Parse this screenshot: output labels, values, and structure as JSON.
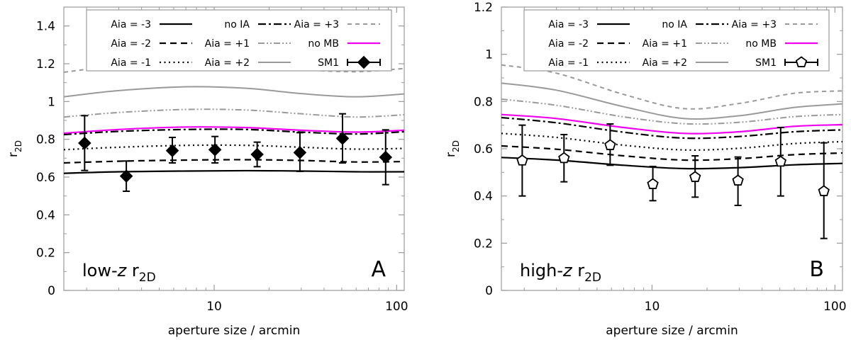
{
  "chart_data": [
    {
      "type": "line",
      "id": "A",
      "panel_letter": "A",
      "label": {
        "prefix": "low-",
        "z": "z",
        "r": "r",
        "sub": "2D"
      },
      "ylabel": {
        "r": "r",
        "sub": "2D"
      },
      "xlabel": "aperture size / arcmin",
      "xscale": "log",
      "xlim": [
        1.5,
        110
      ],
      "ylim": [
        0,
        1.5
      ],
      "yticks": [
        0,
        0.2,
        0.4,
        0.6,
        0.8,
        1,
        1.2,
        1.4
      ],
      "ytick_labels": [
        "0",
        "0.2",
        "0.4",
        "0.6",
        "0.8",
        "1",
        "1.2",
        "1.4"
      ],
      "xticks": [
        10,
        100
      ],
      "xtick_labels": [
        "10",
        "100"
      ],
      "series": [
        {
          "name": "Aia = -3",
          "style": "solid",
          "color": "#000000",
          "x": [
            1.5,
            3,
            7,
            15,
            30,
            60,
            110
          ],
          "y": [
            0.62,
            0.628,
            0.632,
            0.634,
            0.632,
            0.628,
            0.628
          ]
        },
        {
          "name": "Aia = -2",
          "style": "dashed",
          "color": "#000000",
          "x": [
            1.5,
            3,
            7,
            15,
            30,
            60,
            110
          ],
          "y": [
            0.675,
            0.684,
            0.69,
            0.692,
            0.688,
            0.68,
            0.682
          ]
        },
        {
          "name": "Aia = -1",
          "style": "dotted",
          "color": "#000000",
          "x": [
            1.5,
            3,
            7,
            15,
            30,
            60,
            110
          ],
          "y": [
            0.745,
            0.758,
            0.768,
            0.768,
            0.758,
            0.748,
            0.752
          ]
        },
        {
          "name": "no IA",
          "style": "dashdot",
          "color": "#000000",
          "x": [
            1.5,
            3,
            7,
            15,
            30,
            60,
            110
          ],
          "y": [
            0.825,
            0.842,
            0.852,
            0.852,
            0.838,
            0.828,
            0.84
          ]
        },
        {
          "name": "Aia = +1",
          "style": "dashdotdot",
          "color": "#9a9a9a",
          "x": [
            1.5,
            3,
            7,
            15,
            30,
            60,
            110
          ],
          "y": [
            0.918,
            0.942,
            0.958,
            0.955,
            0.935,
            0.918,
            0.93
          ]
        },
        {
          "name": "Aia = +2",
          "style": "solid",
          "color": "#9a9a9a",
          "x": [
            1.5,
            3,
            7,
            15,
            30,
            60,
            110
          ],
          "y": [
            1.025,
            1.058,
            1.078,
            1.07,
            1.042,
            1.025,
            1.04
          ]
        },
        {
          "name": "Aia = +3",
          "style": "shortdash",
          "color": "#9a9a9a",
          "x": [
            1.5,
            3,
            7,
            15,
            30,
            60,
            110
          ],
          "y": [
            1.155,
            1.19,
            1.21,
            1.2,
            1.17,
            1.158,
            1.175
          ]
        },
        {
          "name": "no MB",
          "style": "solid",
          "color": "#ee00ee",
          "x": [
            1.5,
            3,
            7,
            15,
            30,
            60,
            110
          ],
          "y": [
            0.832,
            0.852,
            0.865,
            0.862,
            0.848,
            0.838,
            0.848
          ]
        }
      ],
      "points": {
        "name": "SM1",
        "marker": "diamond",
        "x": [
          1.95,
          3.3,
          5.9,
          10.1,
          17.2,
          29.5,
          50.5,
          87
        ],
        "y": [
          0.78,
          0.605,
          0.74,
          0.745,
          0.72,
          0.73,
          0.805,
          0.705
        ],
        "err_low": [
          0.635,
          0.525,
          0.675,
          0.675,
          0.655,
          0.63,
          0.675,
          0.56
        ],
        "err_high": [
          0.925,
          0.685,
          0.81,
          0.815,
          0.785,
          0.835,
          0.935,
          0.85
        ]
      },
      "legend": {
        "columns": [
          [
            "Aia = -3",
            "Aia = -2",
            "Aia = -1"
          ],
          [
            "no IA",
            "Aia = +1",
            "Aia = +2"
          ],
          [
            "Aia = +3",
            "no MB",
            "SM1"
          ]
        ]
      }
    },
    {
      "type": "line",
      "id": "B",
      "panel_letter": "B",
      "label": {
        "prefix": "high-",
        "z": "z",
        "r": "r",
        "sub": "2D"
      },
      "ylabel": {
        "r": "r",
        "sub": "2D"
      },
      "xlabel": "aperture size / arcmin",
      "xscale": "log",
      "xlim": [
        1.5,
        110
      ],
      "ylim": [
        0,
        1.2
      ],
      "yticks": [
        0,
        0.2,
        0.4,
        0.6,
        0.8,
        1,
        1.2
      ],
      "ytick_labels": [
        "0",
        "0.2",
        "0.4",
        "0.6",
        "0.8",
        "1",
        "1.2"
      ],
      "xticks": [
        10,
        100
      ],
      "xtick_labels": [
        "10",
        "100"
      ],
      "series": [
        {
          "name": "Aia = -3",
          "style": "solid",
          "color": "#000000",
          "x": [
            1.5,
            3,
            7,
            15,
            30,
            60,
            110
          ],
          "y": [
            0.563,
            0.552,
            0.53,
            0.516,
            0.52,
            0.532,
            0.538
          ]
        },
        {
          "name": "Aia = -2",
          "style": "dashed",
          "color": "#000000",
          "x": [
            1.5,
            3,
            7,
            15,
            30,
            60,
            110
          ],
          "y": [
            0.612,
            0.598,
            0.57,
            0.552,
            0.558,
            0.575,
            0.582
          ]
        },
        {
          "name": "Aia = -1",
          "style": "dotted",
          "color": "#000000",
          "x": [
            1.5,
            3,
            7,
            15,
            30,
            60,
            110
          ],
          "y": [
            0.665,
            0.648,
            0.615,
            0.595,
            0.602,
            0.622,
            0.63
          ]
        },
        {
          "name": "no IA",
          "style": "dashdot",
          "color": "#000000",
          "x": [
            1.5,
            3,
            7,
            15,
            30,
            60,
            110
          ],
          "y": [
            0.732,
            0.71,
            0.67,
            0.645,
            0.652,
            0.672,
            0.68
          ]
        },
        {
          "name": "Aia = +1",
          "style": "dashdotdot",
          "color": "#9a9a9a",
          "x": [
            1.5,
            3,
            7,
            15,
            30,
            60,
            110
          ],
          "y": [
            0.81,
            0.784,
            0.735,
            0.706,
            0.712,
            0.736,
            0.745
          ]
        },
        {
          "name": "Aia = +2",
          "style": "solid",
          "color": "#9a9a9a",
          "x": [
            1.5,
            3,
            7,
            15,
            30,
            60,
            110
          ],
          "y": [
            0.878,
            0.848,
            0.778,
            0.728,
            0.74,
            0.775,
            0.79
          ]
        },
        {
          "name": "Aia = +3",
          "style": "shortdash",
          "color": "#9a9a9a",
          "x": [
            1.5,
            3,
            7,
            15,
            30,
            60,
            110
          ],
          "y": [
            0.955,
            0.92,
            0.83,
            0.77,
            0.792,
            0.835,
            0.845
          ]
        },
        {
          "name": "no MB",
          "style": "solid",
          "color": "#ee00ee",
          "x": [
            1.5,
            3,
            7,
            15,
            30,
            60,
            110
          ],
          "y": [
            0.745,
            0.728,
            0.69,
            0.665,
            0.672,
            0.695,
            0.702
          ]
        }
      ],
      "points": {
        "name": "SM1",
        "marker": "pentagon",
        "x": [
          1.95,
          3.3,
          5.9,
          10.1,
          17.2,
          29.5,
          50.5,
          87
        ],
        "y": [
          0.55,
          0.56,
          0.615,
          0.45,
          0.48,
          0.465,
          0.545,
          0.42
        ],
        "err_low": [
          0.4,
          0.46,
          0.53,
          0.38,
          0.395,
          0.36,
          0.4,
          0.22
        ],
        "err_high": [
          0.7,
          0.66,
          0.705,
          0.525,
          0.57,
          0.565,
          0.69,
          0.625
        ]
      },
      "legend": {
        "columns": [
          [
            "Aia = -3",
            "Aia = -2",
            "Aia = -1"
          ],
          [
            "no IA",
            "Aia = +1",
            "Aia = +2"
          ],
          [
            "Aia = +3",
            "no MB",
            "SM1"
          ]
        ]
      }
    }
  ]
}
